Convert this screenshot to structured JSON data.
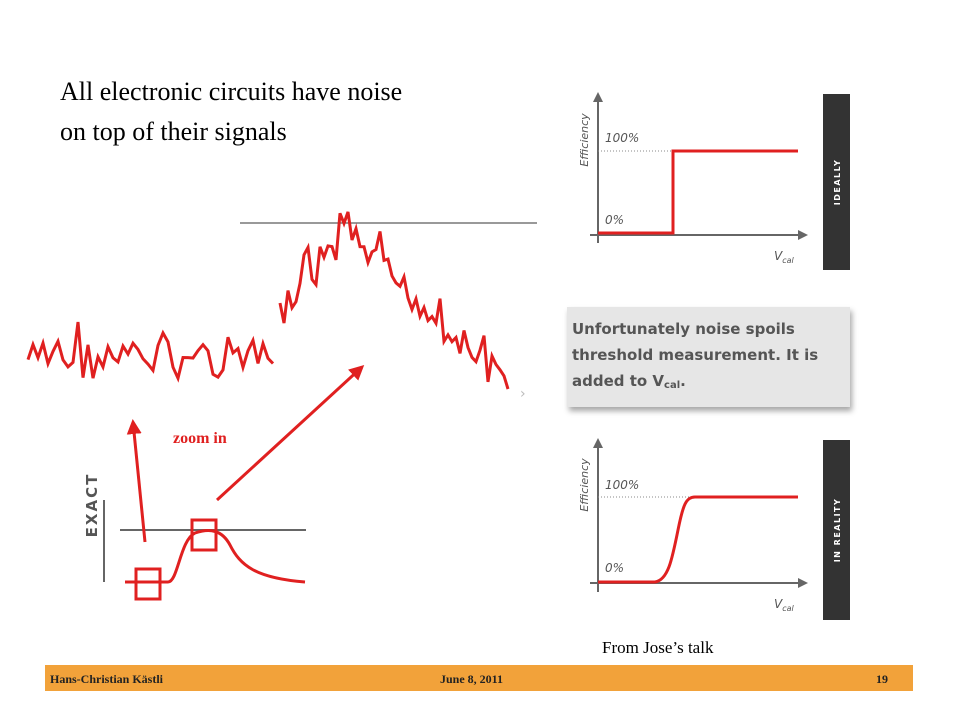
{
  "title": {
    "lines": [
      "All electronic circuits have noise",
      "on top of their signals"
    ]
  },
  "zoom_label": "zoom in",
  "exact_label": "EXACT",
  "plot_ideal": {
    "y_label": "Efficiency",
    "high": "100%",
    "low": "0%",
    "x_label": "V",
    "x_label_sub": "cal",
    "side_label": "IDEALLY"
  },
  "callout": {
    "lines": [
      "Unfortunately noise spoils",
      "threshold measurement. It is"
    ],
    "last_line": "added to V",
    "last_sub": "cal",
    "last_end": "."
  },
  "plot_real": {
    "y_label": "Efficiency",
    "high": "100%",
    "low": "0%",
    "x_label": "V",
    "x_label_sub": "cal",
    "side_label": "IN REALITY"
  },
  "credit": "From Jose’s talk",
  "footer": {
    "author": "Hans-Christian Kästli",
    "date": "June 8, 2011",
    "page": "19"
  }
}
